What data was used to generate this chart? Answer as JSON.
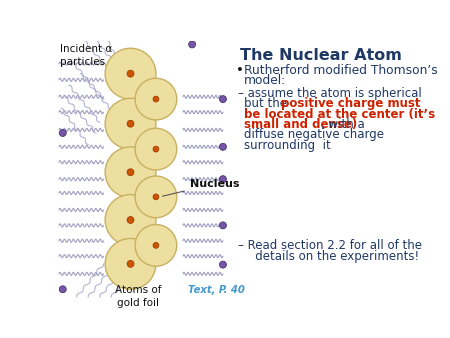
{
  "title": "The Nuclear Atom",
  "title_color": "#1f3864",
  "bg_color": "#ffffff",
  "bullet_text_1": "Rutherford modified Thomson’s",
  "bullet_text_2": "model:",
  "sub1_line1": "– assume the atom is spherical",
  "sub1_line2_a": "   but the ",
  "sub1_line2_b": "positive charge must",
  "sub1_line3": "be located at the center (it’s",
  "sub1_line4": "small and dense)",
  "sub1_line4_b": ", with a",
  "sub1_line5": "diffuse negative charge",
  "sub1_line6": "surrounding  it",
  "sub2_line1": "– Read section 2.2 for all of the",
  "sub2_line2": "   details on the experiments!",
  "red_color": "#cc2200",
  "dark_blue": "#1f3864",
  "black_text": "#222222",
  "atom_fill": "#eddfa0",
  "atom_edge": "#c8b060",
  "nucleus_fill": "#cc5500",
  "nucleus_label": "Nucleus",
  "alpha_fill": "#7755aa",
  "incident_label": "Incident α\nparticles",
  "atoms_label": "Atoms of\ngold foil",
  "text_p40": "Text, P. 40",
  "text_p40_color": "#4499cc",
  "wavy_color": "#9999bb",
  "diag_color": "#aaaacc"
}
